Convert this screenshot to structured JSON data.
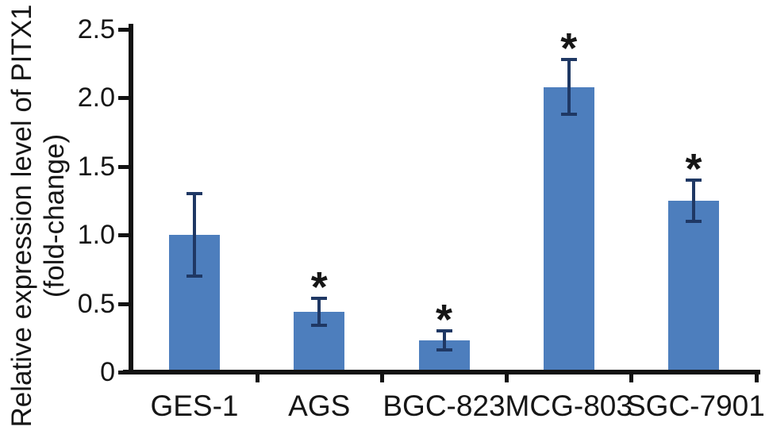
{
  "chart_data": {
    "type": "bar",
    "title": "",
    "ylabel_line1": "Relative expression level of PITX1",
    "ylabel_line2": "(fold-change)",
    "xlabel": "",
    "categories": [
      "GES-1",
      "AGS",
      "BGC-823",
      "MCG-803",
      "SGC-7901"
    ],
    "values": [
      1.0,
      0.44,
      0.23,
      2.08,
      1.25
    ],
    "errors": [
      0.3,
      0.1,
      0.07,
      0.2,
      0.15
    ],
    "significant": [
      false,
      true,
      true,
      true,
      true
    ],
    "significance_marker": "*",
    "ylim": [
      0,
      2.5
    ],
    "ytick_values": [
      0,
      0.5,
      1.0,
      1.5,
      2.0,
      2.5
    ],
    "ytick_labels": [
      "0",
      "0.5",
      "1.0",
      "1.5",
      "2.0",
      "2.5"
    ],
    "grid": false,
    "legend": null,
    "bar_color": "#4d7ebd",
    "error_bar_color": "#1f3864",
    "axis_color": "#121212",
    "text_color": "#161616"
  }
}
